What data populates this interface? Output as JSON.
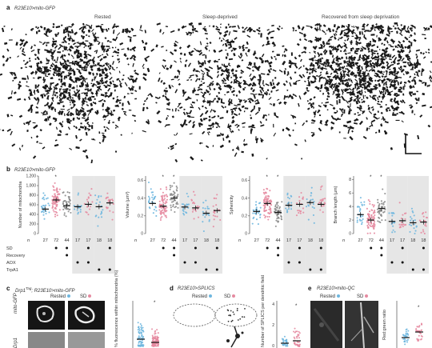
{
  "panel_a": {
    "letter": "a",
    "genotype": "R23E10>mito-GFP",
    "columns": [
      "Rested",
      "Sleep-deprived",
      "Recovered from sleep deprivation"
    ]
  },
  "panel_b": {
    "letter": "b",
    "genotype": "R23E10>mito-GFP",
    "n_label": "n",
    "row_labels": [
      "SD",
      "Recovery",
      "AOX",
      "TrpA1"
    ]
  },
  "panel_c": {
    "letter": "c",
    "genotype_prefix": "Drp1",
    "genotype_sup": "Tag",
    "genotype_suffix": "; R23E10>mito-GFP",
    "legend": [
      "Rested",
      "SD"
    ],
    "row_label_top": "mito-GFP",
    "row_label_bottom": "Drp1",
    "ylabel": "% fluorescence within mitochondria (%)"
  },
  "panel_d": {
    "letter": "d",
    "genotype": "R23E10>SPLICS",
    "legend": [
      "Rested",
      "SD"
    ],
    "ylabel": "Number of SPLICS per dendritic field",
    "yticks": [
      "0",
      "2",
      "4"
    ]
  },
  "panel_e": {
    "letter": "e",
    "genotype": "R23E10>mito-QC",
    "legend": [
      "Rested",
      "SD"
    ],
    "ylabel": "Red:green ratio"
  },
  "colors": {
    "rested": "#6fb7df",
    "sd": "#e58aa0",
    "recovery": "#8a8a8a",
    "shade": "#e6e6e6",
    "bar": "#111111"
  },
  "chart_data": [
    {
      "type": "scatter",
      "ylabel": "Number of mitochondria",
      "yticks": [
        0,
        200,
        400,
        600,
        800,
        1000,
        1200
      ],
      "ytick_labels": [
        "0",
        "200",
        "400",
        "600",
        "800",
        "1,000",
        "1,200"
      ],
      "ylim": [
        0,
        1200
      ],
      "n": [
        "27",
        "72",
        "44",
        "17",
        "17",
        "18",
        "18"
      ],
      "means": [
        510,
        700,
        580,
        560,
        610,
        560,
        640
      ],
      "sig": [
        false,
        true,
        false,
        false,
        false,
        false,
        false
      ],
      "shaded": [
        [
          3,
          4
        ],
        [
          5,
          6
        ]
      ],
      "series_color": [
        "rested",
        "sd",
        "recovery",
        "rested",
        "sd",
        "rested",
        "sd"
      ],
      "SD": [
        false,
        true,
        true,
        false,
        true,
        false,
        true
      ],
      "Recovery": [
        false,
        false,
        true,
        false,
        false,
        false,
        false
      ],
      "AOX": [
        false,
        false,
        false,
        true,
        true,
        false,
        false
      ],
      "TrpA1": [
        false,
        false,
        false,
        false,
        false,
        true,
        true
      ]
    },
    {
      "type": "scatter",
      "ylabel": "Volume (µm³)",
      "yticks": [
        0,
        0.2,
        0.4,
        0.6
      ],
      "ytick_labels": [
        "0",
        "0.2",
        "0.4",
        "0.6"
      ],
      "ylim": [
        0,
        0.65
      ],
      "n": [
        "27",
        "72",
        "44",
        "17",
        "17",
        "18",
        "18"
      ],
      "means": [
        0.34,
        0.31,
        0.4,
        0.3,
        0.29,
        0.23,
        0.26
      ],
      "sig": [
        false,
        true,
        true,
        false,
        false,
        false,
        false
      ],
      "shaded": [
        [
          3,
          4
        ],
        [
          5,
          6
        ]
      ],
      "series_color": [
        "rested",
        "sd",
        "recovery",
        "rested",
        "sd",
        "rested",
        "sd"
      ],
      "SD": [
        false,
        true,
        true,
        false,
        true,
        false,
        true
      ],
      "Recovery": [
        false,
        false,
        true,
        false,
        false,
        false,
        false
      ],
      "AOX": [
        false,
        false,
        false,
        true,
        true,
        false,
        false
      ],
      "TrpA1": [
        false,
        false,
        false,
        false,
        false,
        true,
        true
      ]
    },
    {
      "type": "scatter",
      "ylabel": "Sphericity",
      "yticks": [
        0,
        0.2,
        0.4,
        0.6
      ],
      "ytick_labels": [
        "0",
        "0.2",
        "0.4",
        "0.6"
      ],
      "ylim": [
        0,
        0.65
      ],
      "n": [
        "27",
        "72",
        "44",
        "17",
        "17",
        "18",
        "18"
      ],
      "means": [
        0.25,
        0.34,
        0.24,
        0.32,
        0.33,
        0.35,
        0.33
      ],
      "sig": [
        false,
        true,
        true,
        false,
        false,
        false,
        false
      ],
      "shaded": [
        [
          3,
          4
        ],
        [
          5,
          6
        ]
      ],
      "series_color": [
        "rested",
        "sd",
        "recovery",
        "rested",
        "sd",
        "rested",
        "sd"
      ],
      "SD": [
        false,
        true,
        true,
        false,
        true,
        false,
        true
      ],
      "Recovery": [
        false,
        false,
        true,
        false,
        false,
        false,
        false
      ],
      "AOX": [
        false,
        false,
        false,
        true,
        true,
        false,
        false
      ],
      "TrpA1": [
        false,
        false,
        false,
        false,
        false,
        true,
        true
      ]
    },
    {
      "type": "scatter",
      "ylabel": "Branch length (µm)",
      "yticks": [
        0,
        2,
        4,
        6,
        8
      ],
      "ytick_labels": [
        "0",
        "2",
        "4",
        "6",
        "8"
      ],
      "ylim": [
        0,
        8.5
      ],
      "n": [
        "27",
        "72",
        "44",
        "17",
        "17",
        "18",
        "18"
      ],
      "means": [
        2.8,
        2.0,
        3.7,
        1.8,
        1.9,
        1.6,
        1.7
      ],
      "sig": [
        false,
        true,
        true,
        false,
        false,
        false,
        false
      ],
      "shaded": [
        [
          3,
          4
        ],
        [
          5,
          6
        ]
      ],
      "series_color": [
        "rested",
        "sd",
        "recovery",
        "rested",
        "sd",
        "rested",
        "sd"
      ],
      "SD": [
        false,
        true,
        true,
        false,
        true,
        false,
        true
      ],
      "Recovery": [
        false,
        false,
        true,
        false,
        false,
        false,
        false
      ],
      "AOX": [
        false,
        false,
        false,
        true,
        true,
        false,
        false
      ],
      "TrpA1": [
        false,
        false,
        false,
        false,
        false,
        true,
        true
      ]
    }
  ]
}
